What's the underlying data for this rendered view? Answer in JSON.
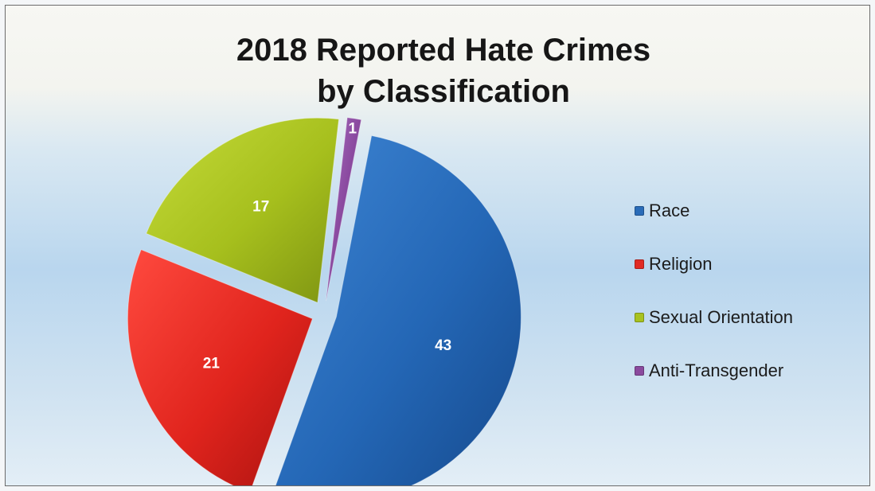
{
  "chart_data": {
    "type": "pie",
    "title": "2018 Reported Hate Crimes\nby Classification",
    "categories": [
      "Race",
      "Religion",
      "Sexual Orientation",
      "Anti-Transgender"
    ],
    "values": [
      43,
      21,
      17,
      1
    ],
    "colors": [
      "#2a6cb8",
      "#e02a24",
      "#a8c21f",
      "#8a4a9e"
    ],
    "exploded": true,
    "legend": "right",
    "data_labels": [
      "43",
      "21",
      "17",
      "1"
    ]
  }
}
